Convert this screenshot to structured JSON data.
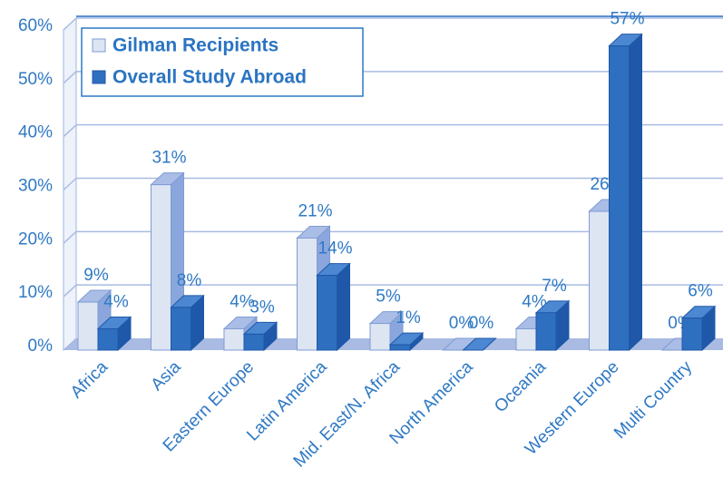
{
  "chart_data": {
    "type": "bar3d",
    "categories": [
      "Africa",
      "Asia",
      "Eastern Europe",
      "Latin America",
      "Mid. East/N. Africa",
      "North America",
      "Oceania",
      "Western Europe",
      "Multi Country"
    ],
    "series": [
      {
        "name": "Gilman Recipients",
        "color": "#dde5f3",
        "values": [
          9,
          31,
          4,
          21,
          5,
          0,
          4,
          26,
          0
        ],
        "value_labels": [
          "9%",
          "31%",
          "4%",
          "21%",
          "5%",
          "0%",
          "4%",
          "26%",
          "0%"
        ]
      },
      {
        "name": "Overall Study Abroad",
        "color": "#2f6fc0",
        "values": [
          4,
          8,
          3,
          14,
          1,
          0,
          7,
          57,
          6
        ],
        "value_labels": [
          "4%",
          "8%",
          "3%",
          "14%",
          "1%",
          "0%",
          "7%",
          "57%",
          "6%"
        ]
      }
    ],
    "ylim": [
      0,
      60
    ],
    "yticks": [
      {
        "value": 0,
        "label": "0%"
      },
      {
        "value": 10,
        "label": "10%"
      },
      {
        "value": 20,
        "label": "20%"
      },
      {
        "value": 30,
        "label": "30%"
      },
      {
        "value": 40,
        "label": "40%"
      },
      {
        "value": 50,
        "label": "50%"
      },
      {
        "value": 60,
        "label": "60%"
      }
    ],
    "grid": true
  }
}
